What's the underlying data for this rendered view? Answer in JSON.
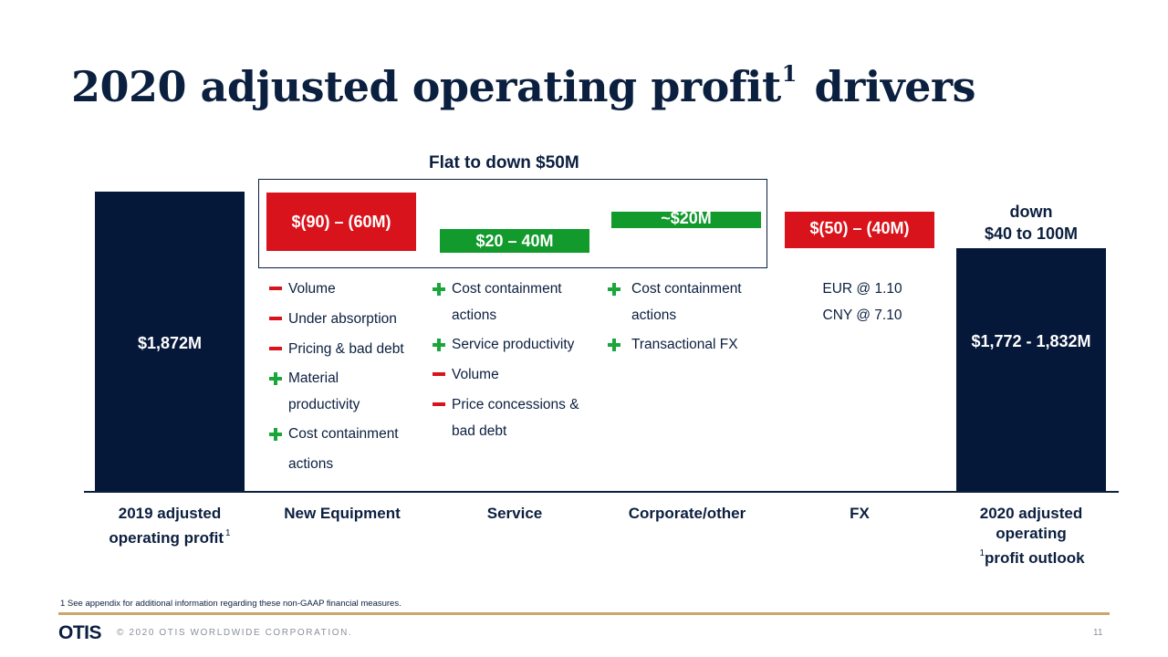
{
  "title": {
    "text": "2020 adjusted operating profit",
    "sup": "1",
    "suffix": "drivers"
  },
  "chart_data": {
    "type": "waterfall",
    "title": "Flat to down $50M",
    "unit": "$M",
    "categories": [
      "2019 adjusted operating profit",
      "New Equipment",
      "Service",
      "Corporate/other",
      "FX",
      "2020 adjusted operating profit outlook"
    ],
    "bars": [
      {
        "category": "2019 adjusted operating profit",
        "kind": "total",
        "value": 1872,
        "label": "$1,872M",
        "color": "#06183a"
      },
      {
        "category": "New Equipment",
        "kind": "change",
        "range": [
          -90,
          -60
        ],
        "label": "$(90) – (60M)",
        "color": "#d9131b"
      },
      {
        "category": "Service",
        "kind": "change",
        "range": [
          20,
          40
        ],
        "label": "$20 – 40M",
        "color": "#129a2d"
      },
      {
        "category": "Corporate/other",
        "kind": "change",
        "value": 20,
        "label": "~$20M",
        "color": "#129a2d"
      },
      {
        "category": "FX",
        "kind": "change",
        "range": [
          -50,
          -40
        ],
        "label": "$(50) – (40M)",
        "color": "#d9131b"
      },
      {
        "category": "2020 adjusted operating profit outlook",
        "kind": "total",
        "range": [
          1772,
          1832
        ],
        "label": "$1,772 - 1,832M",
        "annotation_line1": "down",
        "annotation_line2": "$40 to 100M",
        "color": "#06183a"
      }
    ]
  },
  "categories_display": {
    "c1_line1": "2019 adjusted",
    "c1_line2": "operating profit",
    "c1_sup": "1",
    "c2": "New Equipment",
    "c3": "Service",
    "c4": "Corporate/other",
    "c5": "FX",
    "c6_line1": "2020 adjusted",
    "c6_line2": "operating",
    "c6_line3": "profit outlook",
    "c6_sup": "1"
  },
  "drivers": {
    "new_equipment": [
      {
        "sign": "minus",
        "lines": [
          "Volume"
        ]
      },
      {
        "sign": "minus",
        "lines": [
          "Under absorption"
        ]
      },
      {
        "sign": "minus",
        "lines": [
          "Pricing & bad debt"
        ]
      },
      {
        "sign": "plus",
        "lines": [
          "Material",
          "productivity"
        ]
      },
      {
        "sign": "plus",
        "lines": [
          "Cost containment",
          "actions"
        ]
      }
    ],
    "service": [
      {
        "sign": "plus",
        "lines": [
          "Cost containment",
          "actions"
        ]
      },
      {
        "sign": "plus",
        "lines": [
          "Service productivity"
        ]
      },
      {
        "sign": "minus",
        "lines": [
          "Volume"
        ]
      },
      {
        "sign": "minus",
        "lines": [
          "Price concessions &",
          "bad debt"
        ]
      }
    ],
    "corporate": [
      {
        "sign": "plus",
        "lines": [
          "Cost containment",
          "actions"
        ]
      },
      {
        "sign": "plus",
        "lines": [
          "Transactional FX"
        ]
      }
    ],
    "fx": [
      {
        "sign": "",
        "lines": [
          "EUR @ 1.10"
        ]
      },
      {
        "sign": "",
        "lines": [
          "CNY @ 7.10"
        ]
      }
    ]
  },
  "footnote": "1 See appendix for additional information regarding these non-GAAP financial measures.",
  "footer": {
    "logo": "OTIS",
    "copyright": "© 2020 OTIS WORLDWIDE CORPORATION.",
    "page_number": "11"
  },
  "colors": {
    "navy": "#06183a",
    "red": "#d9131b",
    "green": "#129a2d",
    "gold": "#c8a86a"
  }
}
